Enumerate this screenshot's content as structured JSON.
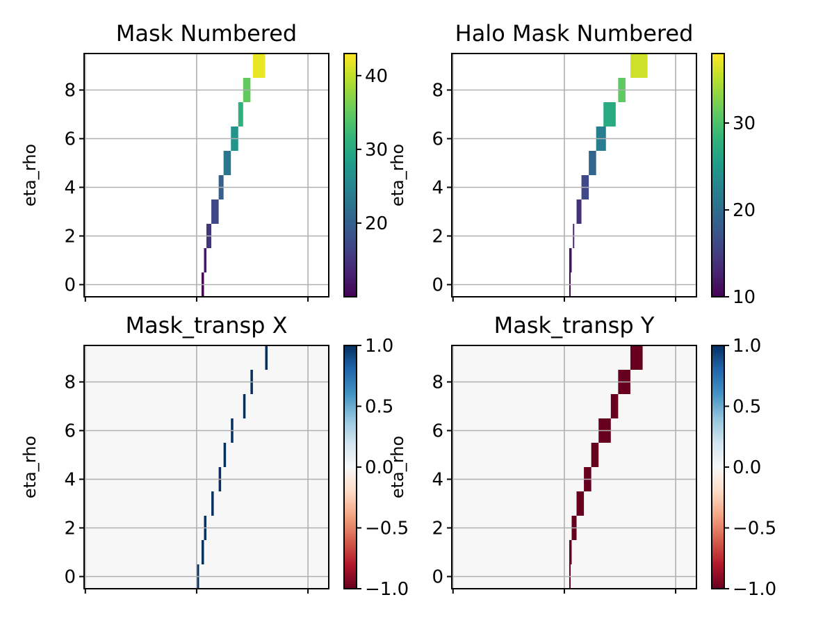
{
  "chart_data": [
    {
      "type": "heatmap",
      "title": "Mask Numbered",
      "ylabel": "eta_rho",
      "xlabel": "",
      "ylim": [
        -0.5,
        9.5
      ],
      "yticks": [
        0,
        2,
        4,
        6,
        8
      ],
      "xticks": [
        "",
        "",
        ""
      ],
      "grid": true,
      "colormap": "viridis",
      "colorbar": {
        "range": [
          10,
          43
        ],
        "ticks": [
          20,
          30,
          40
        ]
      },
      "cells": [
        {
          "row": 0,
          "c0": 0.48,
          "c1": 0.49,
          "value": 10
        },
        {
          "row": 1,
          "c0": 0.49,
          "c1": 0.5,
          "value": 12
        },
        {
          "row": 2,
          "c0": 0.5,
          "c1": 0.52,
          "value": 15
        },
        {
          "row": 3,
          "c0": 0.52,
          "c1": 0.55,
          "value": 17
        },
        {
          "row": 4,
          "c0": 0.55,
          "c1": 0.57,
          "value": 20
        },
        {
          "row": 5,
          "c0": 0.57,
          "c1": 0.6,
          "value": 23
        },
        {
          "row": 6,
          "c0": 0.6,
          "c1": 0.63,
          "value": 27
        },
        {
          "row": 7,
          "c0": 0.63,
          "c1": 0.65,
          "value": 31
        },
        {
          "row": 8,
          "c0": 0.65,
          "c1": 0.68,
          "value": 35
        },
        {
          "row": 9,
          "c0": 0.69,
          "c1": 0.74,
          "value": 42
        }
      ]
    },
    {
      "type": "heatmap",
      "title": "Halo Mask Numbered",
      "ylabel": "eta_rho",
      "xlabel": "",
      "ylim": [
        -0.5,
        9.5
      ],
      "yticks": [
        0,
        2,
        4,
        6,
        8
      ],
      "xticks": [
        "",
        "",
        ""
      ],
      "grid": true,
      "colormap": "viridis",
      "colorbar": {
        "range": [
          10,
          38
        ],
        "ticks": [
          10,
          20,
          30
        ]
      },
      "cells": [
        {
          "row": 0,
          "c0": 0.48,
          "c1": 0.485,
          "value": 10
        },
        {
          "row": 1,
          "c0": 0.48,
          "c1": 0.49,
          "value": 11
        },
        {
          "row": 2,
          "c0": 0.495,
          "c1": 0.5,
          "value": 13
        },
        {
          "row": 3,
          "c0": 0.51,
          "c1": 0.53,
          "value": 14
        },
        {
          "row": 4,
          "c0": 0.53,
          "c1": 0.56,
          "value": 16
        },
        {
          "row": 5,
          "c0": 0.56,
          "c1": 0.59,
          "value": 19
        },
        {
          "row": 6,
          "c0": 0.59,
          "c1": 0.63,
          "value": 22
        },
        {
          "row": 7,
          "c0": 0.62,
          "c1": 0.67,
          "value": 27
        },
        {
          "row": 8,
          "c0": 0.68,
          "c1": 0.71,
          "value": 31
        },
        {
          "row": 9,
          "c0": 0.73,
          "c1": 0.8,
          "value": 36
        }
      ]
    },
    {
      "type": "heatmap",
      "title": "Mask_transp X",
      "ylabel": "eta_rho",
      "xlabel": "",
      "ylim": [
        -0.5,
        9.5
      ],
      "yticks": [
        0,
        2,
        4,
        6,
        8
      ],
      "xticks": [
        "",
        "",
        ""
      ],
      "grid": true,
      "colormap": "RdBu",
      "background_value": 0,
      "colorbar": {
        "range": [
          -1,
          1
        ],
        "ticks": [
          -1.0,
          -0.5,
          0.0,
          0.5,
          1.0
        ],
        "tick_labels": [
          "−1.0",
          "−0.5",
          "0.0",
          "0.5",
          "1.0"
        ]
      },
      "cells": [
        {
          "row": 0,
          "c0": 0.46,
          "c1": 0.47,
          "value": 1
        },
        {
          "row": 1,
          "c0": 0.48,
          "c1": 0.49,
          "value": 1
        },
        {
          "row": 2,
          "c0": 0.49,
          "c1": 0.5,
          "value": 1
        },
        {
          "row": 3,
          "c0": 0.52,
          "c1": 0.53,
          "value": 1
        },
        {
          "row": 4,
          "c0": 0.55,
          "c1": 0.56,
          "value": 1
        },
        {
          "row": 5,
          "c0": 0.57,
          "c1": 0.58,
          "value": 1
        },
        {
          "row": 6,
          "c0": 0.6,
          "c1": 0.61,
          "value": 1
        },
        {
          "row": 7,
          "c0": 0.65,
          "c1": 0.66,
          "value": 1
        },
        {
          "row": 8,
          "c0": 0.68,
          "c1": 0.69,
          "value": 1
        },
        {
          "row": 9,
          "c0": 0.74,
          "c1": 0.75,
          "value": 1
        }
      ]
    },
    {
      "type": "heatmap",
      "title": "Mask_transp Y",
      "ylabel": "eta_rho",
      "xlabel": "",
      "ylim": [
        -0.5,
        9.5
      ],
      "yticks": [
        0,
        2,
        4,
        6,
        8
      ],
      "xticks": [
        "",
        "",
        ""
      ],
      "grid": true,
      "colormap": "RdBu",
      "background_value": 0,
      "colorbar": {
        "range": [
          -1,
          1
        ],
        "ticks": [
          -1.0,
          -0.5,
          0.0,
          0.5,
          1.0
        ],
        "tick_labels": [
          "−1.0",
          "−0.5",
          "0.0",
          "0.5",
          "1.0"
        ]
      },
      "cells": [
        {
          "row": 0,
          "c0": 0.48,
          "c1": 0.485,
          "value": -1
        },
        {
          "row": 1,
          "c0": 0.48,
          "c1": 0.49,
          "value": -1
        },
        {
          "row": 2,
          "c0": 0.49,
          "c1": 0.51,
          "value": -1
        },
        {
          "row": 3,
          "c0": 0.51,
          "c1": 0.54,
          "value": -1
        },
        {
          "row": 4,
          "c0": 0.54,
          "c1": 0.57,
          "value": -1
        },
        {
          "row": 5,
          "c0": 0.57,
          "c1": 0.6,
          "value": -1
        },
        {
          "row": 6,
          "c0": 0.6,
          "c1": 0.65,
          "value": -1
        },
        {
          "row": 7,
          "c0": 0.65,
          "c1": 0.68,
          "value": -1
        },
        {
          "row": 8,
          "c0": 0.68,
          "c1": 0.73,
          "value": -1
        },
        {
          "row": 9,
          "c0": 0.73,
          "c1": 0.78,
          "value": -1
        }
      ]
    }
  ]
}
